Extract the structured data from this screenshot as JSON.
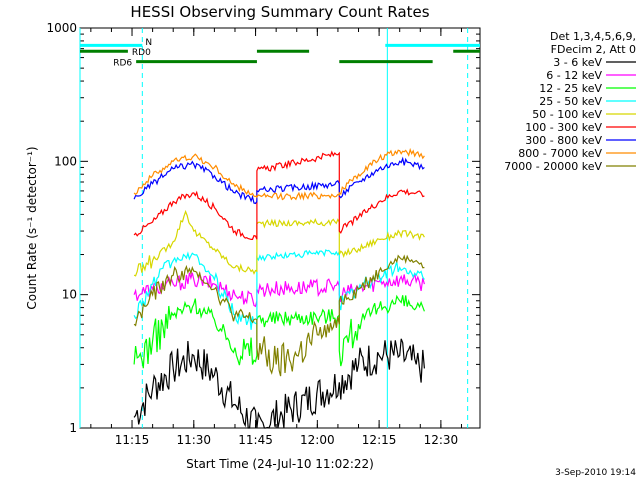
{
  "chart_data": {
    "type": "line",
    "title": "HESSI Observing Summary Count Rates",
    "xlabel": "Start Time (24-Jul-10 11:02:22)",
    "ylabel": "Count Rate (s⁻¹ detector⁻¹)",
    "yscale": "log",
    "ylim": [
      1,
      1000
    ],
    "xlim": [
      "11:02:22",
      "12:39:30"
    ],
    "x_ticks": [
      "11:15",
      "11:30",
      "11:45",
      "12:00",
      "12:15",
      "12:30"
    ],
    "y_ticks": [
      "1",
      "10",
      "100",
      "1000"
    ],
    "grid": false,
    "legend_placement": "right",
    "legend_header": [
      "Det 1,3,4,5,6,9,",
      "FDecim 2, Att 0"
    ],
    "date_stamp": "3-Sep-2010 19:14",
    "day_night_gaps": [
      [
        "11:02:22",
        "11:15:30"
      ],
      [
        "11:45:20",
        "12:05:20"
      ],
      [
        "12:26:00",
        "12:39:30"
      ]
    ],
    "series": [
      {
        "name": "3 - 6 keV",
        "color": "#000000",
        "x": [
          "11:15:30",
          "11:20:00",
          "11:25:00",
          "11:30:00",
          "11:35:00",
          "11:40:00",
          "11:45:20",
          "12:05:20",
          "12:10:00",
          "12:15:00",
          "12:20:00",
          "12:24:00",
          "12:26:00"
        ],
        "y": [
          1.2,
          2.0,
          2.8,
          3.5,
          2.5,
          1.5,
          1.0,
          2.2,
          3.0,
          3.5,
          3.5,
          3.0,
          2.8
        ]
      },
      {
        "name": "6 - 12 keV",
        "color": "#ff00ff",
        "x": [
          "11:15:30",
          "11:20:00",
          "11:25:00",
          "11:30:00",
          "11:35:00",
          "11:40:00",
          "11:45:20",
          "11:45:20",
          "12:05:20",
          "12:05:20",
          "12:10:00",
          "12:15:00",
          "12:20:00",
          "12:24:00",
          "12:26:00"
        ],
        "y": [
          10,
          11,
          12,
          13,
          12,
          10,
          9,
          11,
          11.5,
          10,
          11,
          12.5,
          13,
          12.5,
          12
        ]
      },
      {
        "name": "12 - 25 keV",
        "color": "#00ff00",
        "x": [
          "11:15:30",
          "11:20:00",
          "11:25:00",
          "11:30:00",
          "11:35:00",
          "11:40:00",
          "11:45:20",
          "11:45:20",
          "12:05:20",
          "12:05:20",
          "12:10:00",
          "12:15:00",
          "12:20:00",
          "12:24:00",
          "12:26:00"
        ],
        "y": [
          3.0,
          4.5,
          7.0,
          8.5,
          6.5,
          4.0,
          3.5,
          6.5,
          7.0,
          3.8,
          6.0,
          8.0,
          9.0,
          8.0,
          7.5
        ]
      },
      {
        "name": "25 - 50 keV",
        "color": "#00ffff",
        "x": [
          "11:15:30",
          "11:20:00",
          "11:25:00",
          "11:30:00",
          "11:35:00",
          "11:40:00",
          "11:45:20",
          "11:45:20",
          "12:05:20",
          "12:05:20",
          "12:10:00",
          "12:15:00",
          "12:20:00",
          "12:24:00",
          "12:26:00"
        ],
        "y": [
          7,
          12,
          18,
          20,
          13,
          7,
          6,
          19,
          21,
          8.5,
          11,
          14,
          16,
          14,
          13
        ]
      },
      {
        "name": "50 - 100 keV",
        "color": "#d7d700",
        "x": [
          "11:15:30",
          "11:20:00",
          "11:25:00",
          "11:28:00",
          "11:30:00",
          "11:35:00",
          "11:40:00",
          "11:45:20",
          "11:45:20",
          "12:05:20",
          "12:05:20",
          "12:10:00",
          "12:15:00",
          "12:20:00",
          "12:24:00",
          "12:26:00"
        ],
        "y": [
          14,
          18,
          25,
          42,
          30,
          22,
          16,
          15,
          34,
          35,
          20,
          22,
          26,
          29,
          28,
          27
        ]
      },
      {
        "name": "100 - 300 keV",
        "color": "#ff0000",
        "x": [
          "11:15:30",
          "11:20:00",
          "11:25:00",
          "11:30:00",
          "11:35:00",
          "11:40:00",
          "11:45:20",
          "11:45:20",
          "12:05:20",
          "12:05:20",
          "12:10:00",
          "12:15:00",
          "12:20:00",
          "12:24:00",
          "12:26:00"
        ],
        "y": [
          28,
          35,
          50,
          58,
          45,
          30,
          26,
          85,
          115,
          30,
          38,
          50,
          60,
          58,
          55
        ]
      },
      {
        "name": "300 - 800 keV",
        "color": "#0000ff",
        "x": [
          "11:15:30",
          "11:20:00",
          "11:25:00",
          "11:30:00",
          "11:35:00",
          "11:40:00",
          "11:45:20",
          "11:45:20",
          "12:05:20",
          "12:05:20",
          "12:10:00",
          "12:15:00",
          "12:20:00",
          "12:24:00",
          "12:26:00"
        ],
        "y": [
          52,
          68,
          88,
          95,
          78,
          58,
          50,
          60,
          68,
          55,
          70,
          88,
          100,
          95,
          90
        ]
      },
      {
        "name": "800 - 7000 keV",
        "color": "#ff8c00",
        "x": [
          "11:15:30",
          "11:20:00",
          "11:25:00",
          "11:30:00",
          "11:35:00",
          "11:40:00",
          "11:45:20",
          "11:45:20",
          "12:05:20",
          "12:05:20",
          "12:10:00",
          "12:15:00",
          "12:20:00",
          "12:24:00",
          "12:26:00"
        ],
        "y": [
          58,
          78,
          100,
          110,
          90,
          65,
          55,
          54,
          56,
          58,
          80,
          105,
          120,
          115,
          110
        ]
      },
      {
        "name": "7000 - 20000 keV",
        "color": "#808000",
        "x": [
          "11:15:30",
          "11:20:00",
          "11:25:00",
          "11:30:00",
          "11:35:00",
          "11:40:00",
          "11:45:20",
          "11:45:20",
          "11:50:00",
          "11:55:00",
          "12:00:00",
          "12:05:20",
          "12:05:20",
          "12:10:00",
          "12:15:00",
          "12:20:00",
          "12:24:00",
          "12:26:00"
        ],
        "y": [
          6,
          10,
          14,
          15,
          11,
          7,
          6.5,
          4.0,
          3.0,
          3.5,
          5.0,
          6.0,
          9.0,
          11,
          15,
          19,
          18,
          16
        ]
      }
    ],
    "flag_bars": [
      {
        "label": "",
        "color": "#00ffff",
        "segments": [
          [
            "11:02:22",
            "11:17:30"
          ],
          [
            "12:16:30",
            "12:39:30"
          ]
        ],
        "level": 740
      },
      {
        "label": "N",
        "color": "#00ffff",
        "segments": [],
        "level": 800
      },
      {
        "label": "RD0",
        "color": "#007f00",
        "segments": [
          [
            "11:02:22",
            "11:14:00"
          ],
          [
            "11:45:20",
            "11:58:00"
          ],
          [
            "12:33:00",
            "12:39:30"
          ]
        ],
        "level": 670
      },
      {
        "label": "RD6",
        "color": "#007f00",
        "segments": [
          [
            "11:16:00",
            "11:45:20"
          ],
          [
            "12:05:20",
            "12:28:00"
          ]
        ],
        "level": 560
      }
    ],
    "vertical_markers": [
      {
        "x": "11:02:22",
        "style": "solid",
        "color": "#00ffff"
      },
      {
        "x": "11:17:30",
        "style": "dashed",
        "color": "#00ffff"
      },
      {
        "x": "12:17:00",
        "style": "solid",
        "color": "#00ffff"
      },
      {
        "x": "12:36:30",
        "style": "dashed",
        "color": "#00ffff"
      }
    ]
  }
}
